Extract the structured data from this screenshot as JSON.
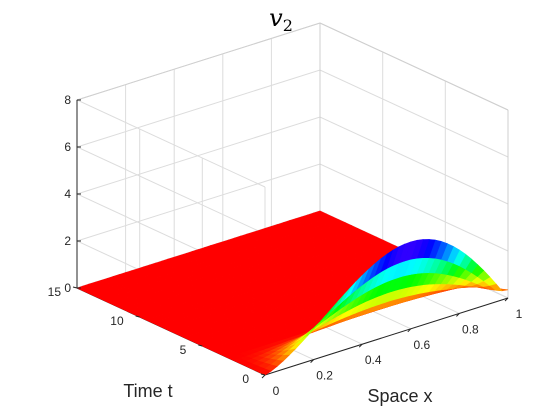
{
  "chart_data": {
    "type": "surface",
    "title": "v",
    "title_subscript": "2",
    "xlabel": "Space x",
    "ylabel": "Time t",
    "zlabel": "",
    "xlim": [
      0,
      1
    ],
    "ylim": [
      0,
      15
    ],
    "zlim": [
      0,
      8
    ],
    "x_ticks": [
      "0",
      "0.2",
      "0.4",
      "0.6",
      "0.8",
      "1"
    ],
    "y_ticks": [
      "0",
      "5",
      "10",
      "15"
    ],
    "z_ticks": [
      "0",
      "2",
      "4",
      "6",
      "8"
    ],
    "grid": true,
    "colormap": "hsv",
    "surface_model": {
      "description_values": "approximate v2(x,t): zero for t > ~3, peak ~3.7 near x = 0.6 at t = 0",
      "peak_value": 3.7,
      "peak_x": 0.6,
      "support_t": [
        0,
        3
      ],
      "edge_value_at_x1_t0": 0.35
    }
  }
}
